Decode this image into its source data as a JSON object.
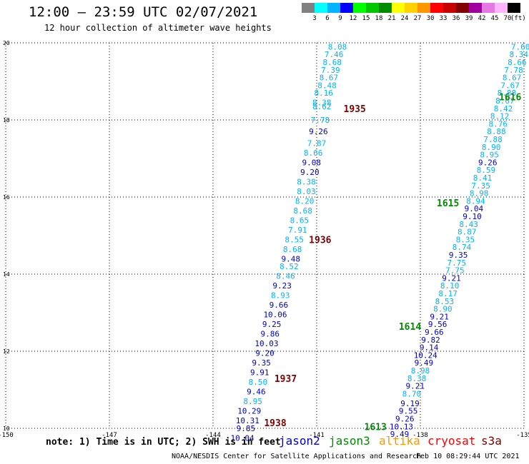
{
  "header": {
    "title": "12:00 – 23:59 UTC 02/07/2021",
    "subtitle": "12 hour collection of altimeter wave heights"
  },
  "legend": {
    "bins": [
      {
        "label": "3",
        "color": "#808080"
      },
      {
        "label": "6",
        "color": "#00ffff"
      },
      {
        "label": "9",
        "color": "#00b4ff"
      },
      {
        "label": "12",
        "color": "#0000ff"
      },
      {
        "label": "15",
        "color": "#00ff00"
      },
      {
        "label": "18",
        "color": "#00c800"
      },
      {
        "label": "21",
        "color": "#008c00"
      },
      {
        "label": "24",
        "color": "#ffff00"
      },
      {
        "label": "27",
        "color": "#ffd200"
      },
      {
        "label": "30",
        "color": "#ff9600"
      },
      {
        "label": "33",
        "color": "#ff0000"
      },
      {
        "label": "36",
        "color": "#c80000"
      },
      {
        "label": "39",
        "color": "#820000"
      },
      {
        "label": "42",
        "color": "#a000a0"
      },
      {
        "label": "45",
        "color": "#e678e6"
      },
      {
        "label": "70",
        "color": "#ffb4ff"
      },
      {
        "label": "",
        "color": "#000000"
      }
    ],
    "unit": "(ft)"
  },
  "footer": {
    "note": "note:  1) Time is in UTC; 2) SWH is in feet",
    "credit": "NOAA/NESDIS Center for Satellite Applications and Research",
    "timestamp": "Feb 10 08:29:44 UTC 2021",
    "satellites": [
      {
        "name": "jason2",
        "color": "#0000c8"
      },
      {
        "name": "jason3",
        "color": "#008c00"
      },
      {
        "name": "altika",
        "color": "#ff9600"
      },
      {
        "name": "cryosat",
        "color": "#ff0000"
      },
      {
        "name": "s3a",
        "color": "#820000"
      }
    ]
  },
  "chart_data": {
    "type": "scatter",
    "xlim": [
      -150,
      -135
    ],
    "ylim": [
      10,
      20
    ],
    "xticks": [
      "-150",
      "-147",
      "-144",
      "-141",
      "-138",
      "-135"
    ],
    "yticks": [
      "10",
      "12",
      "14",
      "16",
      "18",
      "20"
    ],
    "grid": true,
    "pass_labels": [
      {
        "text": "1935",
        "lon": -139.9,
        "lat": 18.3,
        "color": "#820000"
      },
      {
        "text": "1936",
        "lon": -140.9,
        "lat": 14.9,
        "color": "#820000"
      },
      {
        "text": "1937",
        "lon": -141.9,
        "lat": 11.3,
        "color": "#820000"
      },
      {
        "text": "1938",
        "lon": -142.2,
        "lat": 10.15,
        "color": "#820000"
      },
      {
        "text": "1616",
        "lon": -135.4,
        "lat": 18.6,
        "color": "#008c00"
      },
      {
        "text": "1615",
        "lon": -137.2,
        "lat": 15.85,
        "color": "#008c00"
      },
      {
        "text": "1614",
        "lon": -138.3,
        "lat": 12.65,
        "color": "#008c00"
      },
      {
        "text": "1613",
        "lon": -139.3,
        "lat": 10.05,
        "color": "#008c00"
      }
    ],
    "series": [
      {
        "name": "1935-1938",
        "points": [
          {
            "lon": -140.4,
            "lat": 19.9,
            "v": "8.08",
            "c": "#00b4ff"
          },
          {
            "lon": -140.5,
            "lat": 19.7,
            "v": "7.46",
            "c": "#00b4ff"
          },
          {
            "lon": -140.55,
            "lat": 19.5,
            "v": "8.68",
            "c": "#00b4ff"
          },
          {
            "lon": -140.6,
            "lat": 19.3,
            "v": "7.39",
            "c": "#00b4ff"
          },
          {
            "lon": -140.65,
            "lat": 19.1,
            "v": "8.67",
            "c": "#00b4ff"
          },
          {
            "lon": -140.7,
            "lat": 18.9,
            "v": "8.48",
            "c": "#00b4ff"
          },
          {
            "lon": -140.8,
            "lat": 18.7,
            "v": "8.16",
            "c": "#00b4ff"
          },
          {
            "lon": -140.85,
            "lat": 18.45,
            "v": "8.38",
            "c": "#00b4ff"
          },
          {
            "lon": -140.85,
            "lat": 18.35,
            "v": "8.62",
            "c": "#00b4ff"
          },
          {
            "lon": -140.9,
            "lat": 18.0,
            "v": "7.78",
            "c": "#00b4ff"
          },
          {
            "lon": -140.95,
            "lat": 17.7,
            "v": "9.26",
            "c": "#0000c8"
          },
          {
            "lon": -141.0,
            "lat": 17.4,
            "v": "7.87",
            "c": "#00b4ff"
          },
          {
            "lon": -141.1,
            "lat": 17.15,
            "v": "8.66",
            "c": "#00b4ff"
          },
          {
            "lon": -141.15,
            "lat": 16.9,
            "v": "9.08",
            "c": "#0000c8"
          },
          {
            "lon": -141.2,
            "lat": 16.65,
            "v": "9.20",
            "c": "#0000c8"
          },
          {
            "lon": -141.3,
            "lat": 16.4,
            "v": "8.38",
            "c": "#00b4ff"
          },
          {
            "lon": -141.3,
            "lat": 16.15,
            "v": "8.03",
            "c": "#00b4ff"
          },
          {
            "lon": -141.35,
            "lat": 15.9,
            "v": "8.20",
            "c": "#00b4ff"
          },
          {
            "lon": -141.4,
            "lat": 15.65,
            "v": "8.68",
            "c": "#00b4ff"
          },
          {
            "lon": -141.5,
            "lat": 15.4,
            "v": "8.65",
            "c": "#00b4ff"
          },
          {
            "lon": -141.55,
            "lat": 15.15,
            "v": "7.91",
            "c": "#00b4ff"
          },
          {
            "lon": -141.65,
            "lat": 14.9,
            "v": "8.55",
            "c": "#00b4ff"
          },
          {
            "lon": -141.7,
            "lat": 14.65,
            "v": "8.68",
            "c": "#00b4ff"
          },
          {
            "lon": -141.75,
            "lat": 14.4,
            "v": "9.48",
            "c": "#0000c8"
          },
          {
            "lon": -141.8,
            "lat": 14.2,
            "v": "8.52",
            "c": "#00b4ff"
          },
          {
            "lon": -141.9,
            "lat": 13.95,
            "v": "8.46",
            "c": "#00b4ff"
          },
          {
            "lon": -142.0,
            "lat": 13.7,
            "v": "9.23",
            "c": "#0000c8"
          },
          {
            "lon": -142.05,
            "lat": 13.45,
            "v": "8.93",
            "c": "#00b4ff"
          },
          {
            "lon": -142.1,
            "lat": 13.2,
            "v": "9.66",
            "c": "#0000c8"
          },
          {
            "lon": -142.2,
            "lat": 12.95,
            "v": "10.06",
            "c": "#0000c8"
          },
          {
            "lon": -142.3,
            "lat": 12.7,
            "v": "9.25",
            "c": "#0000c8"
          },
          {
            "lon": -142.35,
            "lat": 12.45,
            "v": "9.86",
            "c": "#0000c8"
          },
          {
            "lon": -142.45,
            "lat": 12.2,
            "v": "10.03",
            "c": "#0000c8"
          },
          {
            "lon": -142.5,
            "lat": 11.95,
            "v": "9.20",
            "c": "#0000c8"
          },
          {
            "lon": -142.6,
            "lat": 11.7,
            "v": "9.35",
            "c": "#0000c8"
          },
          {
            "lon": -142.65,
            "lat": 11.45,
            "v": "9.91",
            "c": "#0000c8"
          },
          {
            "lon": -142.7,
            "lat": 11.2,
            "v": "8.50",
            "c": "#00b4ff"
          },
          {
            "lon": -142.75,
            "lat": 10.95,
            "v": "9.46",
            "c": "#0000c8"
          },
          {
            "lon": -142.85,
            "lat": 10.7,
            "v": "8.95",
            "c": "#00b4ff"
          },
          {
            "lon": -142.95,
            "lat": 10.45,
            "v": "10.29",
            "c": "#0000c8"
          },
          {
            "lon": -143.0,
            "lat": 10.2,
            "v": "10.31",
            "c": "#0000c8"
          },
          {
            "lon": -143.05,
            "lat": 10.0,
            "v": "9.85",
            "c": "#0000c8"
          },
          {
            "lon": -143.15,
            "lat": 9.75,
            "v": "10.04",
            "c": "#0000c8"
          }
        ]
      },
      {
        "name": "1613-1616",
        "points": [
          {
            "lon": -135.1,
            "lat": 19.9,
            "v": "7.60",
            "c": "#00b4ff"
          },
          {
            "lon": -135.15,
            "lat": 19.7,
            "v": "8.34",
            "c": "#00b4ff"
          },
          {
            "lon": -135.2,
            "lat": 19.5,
            "v": "8.66",
            "c": "#00b4ff"
          },
          {
            "lon": -135.3,
            "lat": 19.3,
            "v": "7.78",
            "c": "#00b4ff"
          },
          {
            "lon": -135.35,
            "lat": 19.1,
            "v": "8.67",
            "c": "#00b4ff"
          },
          {
            "lon": -135.4,
            "lat": 18.9,
            "v": "7.67",
            "c": "#00b4ff"
          },
          {
            "lon": -135.5,
            "lat": 18.7,
            "v": "8.88",
            "c": "#00b4ff"
          },
          {
            "lon": -135.55,
            "lat": 18.5,
            "v": "8.67",
            "c": "#00b4ff"
          },
          {
            "lon": -135.6,
            "lat": 18.3,
            "v": "8.42",
            "c": "#00b4ff"
          },
          {
            "lon": -135.7,
            "lat": 18.1,
            "v": "8.12",
            "c": "#00b4ff"
          },
          {
            "lon": -135.75,
            "lat": 17.9,
            "v": "8.76",
            "c": "#00b4ff"
          },
          {
            "lon": -135.8,
            "lat": 17.7,
            "v": "8.88",
            "c": "#00b4ff"
          },
          {
            "lon": -135.9,
            "lat": 17.5,
            "v": "7.88",
            "c": "#00b4ff"
          },
          {
            "lon": -135.95,
            "lat": 17.3,
            "v": "8.90",
            "c": "#00b4ff"
          },
          {
            "lon": -136.0,
            "lat": 17.1,
            "v": "8.95",
            "c": "#00b4ff"
          },
          {
            "lon": -136.05,
            "lat": 16.9,
            "v": "9.26",
            "c": "#0000c8"
          },
          {
            "lon": -136.1,
            "lat": 16.7,
            "v": "8.59",
            "c": "#00b4ff"
          },
          {
            "lon": -136.2,
            "lat": 16.5,
            "v": "8.41",
            "c": "#00b4ff"
          },
          {
            "lon": -136.25,
            "lat": 16.3,
            "v": "7.35",
            "c": "#00b4ff"
          },
          {
            "lon": -136.3,
            "lat": 16.1,
            "v": "8.98",
            "c": "#00b4ff"
          },
          {
            "lon": -136.4,
            "lat": 15.9,
            "v": "8.94",
            "c": "#00b4ff"
          },
          {
            "lon": -136.45,
            "lat": 15.7,
            "v": "9.04",
            "c": "#0000c8"
          },
          {
            "lon": -136.5,
            "lat": 15.5,
            "v": "9.10",
            "c": "#0000c8"
          },
          {
            "lon": -136.6,
            "lat": 15.3,
            "v": "8.43",
            "c": "#00b4ff"
          },
          {
            "lon": -136.65,
            "lat": 15.1,
            "v": "8.87",
            "c": "#00b4ff"
          },
          {
            "lon": -136.7,
            "lat": 14.9,
            "v": "8.35",
            "c": "#00b4ff"
          },
          {
            "lon": -136.8,
            "lat": 14.7,
            "v": "8.74",
            "c": "#00b4ff"
          },
          {
            "lon": -136.9,
            "lat": 14.5,
            "v": "9.35",
            "c": "#0000c8"
          },
          {
            "lon": -136.95,
            "lat": 14.3,
            "v": "7.75",
            "c": "#00b4ff"
          },
          {
            "lon": -137.0,
            "lat": 14.1,
            "v": "7.75",
            "c": "#00b4ff"
          },
          {
            "lon": -137.1,
            "lat": 13.9,
            "v": "9.21",
            "c": "#0000c8"
          },
          {
            "lon": -137.15,
            "lat": 13.7,
            "v": "8.10",
            "c": "#00b4ff"
          },
          {
            "lon": -137.2,
            "lat": 13.5,
            "v": "8.17",
            "c": "#00b4ff"
          },
          {
            "lon": -137.3,
            "lat": 13.3,
            "v": "8.53",
            "c": "#00b4ff"
          },
          {
            "lon": -137.35,
            "lat": 13.1,
            "v": "8.90",
            "c": "#00b4ff"
          },
          {
            "lon": -137.45,
            "lat": 12.9,
            "v": "9.21",
            "c": "#0000c8"
          },
          {
            "lon": -137.5,
            "lat": 12.7,
            "v": "9.56",
            "c": "#0000c8"
          },
          {
            "lon": -137.6,
            "lat": 12.5,
            "v": "9.66",
            "c": "#0000c8"
          },
          {
            "lon": -137.7,
            "lat": 12.3,
            "v": "9.82",
            "c": "#0000c8"
          },
          {
            "lon": -137.75,
            "lat": 12.1,
            "v": "9.14",
            "c": "#0000c8"
          },
          {
            "lon": -137.85,
            "lat": 11.9,
            "v": "10.24",
            "c": "#0000c8"
          },
          {
            "lon": -137.9,
            "lat": 11.7,
            "v": "9.49",
            "c": "#0000c8"
          },
          {
            "lon": -138.0,
            "lat": 11.5,
            "v": "8.98",
            "c": "#00b4ff"
          },
          {
            "lon": -138.1,
            "lat": 11.3,
            "v": "8.38",
            "c": "#00b4ff"
          },
          {
            "lon": -138.15,
            "lat": 11.1,
            "v": "9.21",
            "c": "#0000c8"
          },
          {
            "lon": -138.25,
            "lat": 10.9,
            "v": "8.70",
            "c": "#00b4ff"
          },
          {
            "lon": -138.3,
            "lat": 10.65,
            "v": "9.19",
            "c": "#0000c8"
          },
          {
            "lon": -138.35,
            "lat": 10.45,
            "v": "9.55",
            "c": "#0000c8"
          },
          {
            "lon": -138.45,
            "lat": 10.25,
            "v": "9.26",
            "c": "#0000c8"
          },
          {
            "lon": -138.55,
            "lat": 10.05,
            "v": "10.13",
            "c": "#0000c8"
          },
          {
            "lon": -138.6,
            "lat": 9.85,
            "v": "9.49",
            "c": "#0000c8"
          }
        ]
      }
    ]
  }
}
